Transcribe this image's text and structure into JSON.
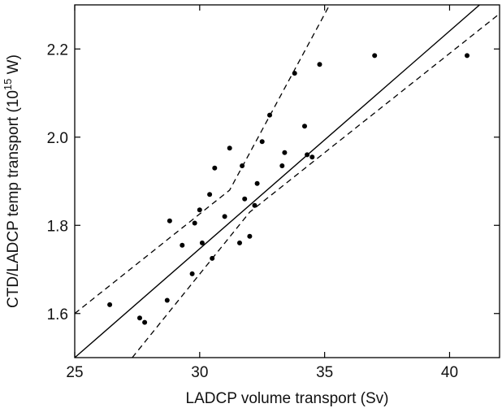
{
  "chart_data": {
    "type": "scatter",
    "xlabel": "LADCP volume transport (Sv)",
    "ylabel": "CTD/LADCP temp transport (10",
    "ylabel_sup": "15",
    "ylabel_unit_suffix": " W)",
    "xlim": [
      25,
      42
    ],
    "ylim": [
      1.5,
      2.3
    ],
    "x_ticks": [
      25,
      30,
      35,
      40
    ],
    "x_tick_labels": [
      "25",
      "30",
      "35",
      "40"
    ],
    "y_ticks": [
      1.6,
      1.8,
      2.0,
      2.2
    ],
    "y_tick_labels": [
      "1.6",
      "1.8",
      "2.0",
      "2.2"
    ],
    "grid": false,
    "points": [
      {
        "x": 26.4,
        "y": 1.62
      },
      {
        "x": 27.6,
        "y": 1.59
      },
      {
        "x": 27.8,
        "y": 1.58
      },
      {
        "x": 28.7,
        "y": 1.63
      },
      {
        "x": 28.8,
        "y": 1.81
      },
      {
        "x": 29.3,
        "y": 1.755
      },
      {
        "x": 29.7,
        "y": 1.69
      },
      {
        "x": 29.8,
        "y": 1.805
      },
      {
        "x": 30.0,
        "y": 1.835
      },
      {
        "x": 30.1,
        "y": 1.76
      },
      {
        "x": 30.4,
        "y": 1.87
      },
      {
        "x": 30.5,
        "y": 1.725
      },
      {
        "x": 30.6,
        "y": 1.93
      },
      {
        "x": 31.0,
        "y": 1.82
      },
      {
        "x": 31.2,
        "y": 1.975
      },
      {
        "x": 31.6,
        "y": 1.76
      },
      {
        "x": 31.7,
        "y": 1.935
      },
      {
        "x": 31.8,
        "y": 1.86
      },
      {
        "x": 32.0,
        "y": 1.775
      },
      {
        "x": 32.2,
        "y": 1.845
      },
      {
        "x": 32.3,
        "y": 1.895
      },
      {
        "x": 32.5,
        "y": 1.99
      },
      {
        "x": 32.8,
        "y": 2.05
      },
      {
        "x": 33.3,
        "y": 1.935
      },
      {
        "x": 33.4,
        "y": 1.965
      },
      {
        "x": 33.8,
        "y": 2.145
      },
      {
        "x": 34.2,
        "y": 2.025
      },
      {
        "x": 34.3,
        "y": 1.96
      },
      {
        "x": 34.5,
        "y": 1.955
      },
      {
        "x": 34.8,
        "y": 2.165
      },
      {
        "x": 37.0,
        "y": 2.185
      },
      {
        "x": 40.7,
        "y": 2.185
      }
    ],
    "fit_line": [
      [
        25,
        1.5
      ],
      [
        41.2,
        2.3
      ]
    ],
    "upper_bound": [
      [
        25,
        1.6
      ],
      [
        31.2,
        1.88
      ],
      [
        35.2,
        2.3
      ]
    ],
    "lower_bound": [
      [
        27.3,
        1.5
      ],
      [
        32.0,
        1.83
      ],
      [
        42,
        2.28
      ]
    ]
  }
}
